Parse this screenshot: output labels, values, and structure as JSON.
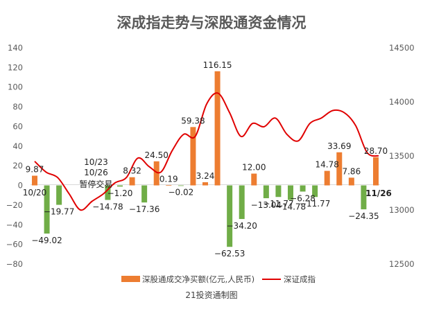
{
  "chart_data": {
    "type": "bar",
    "title": "深成指走势与深股通资金情况",
    "source": "21投资通制图",
    "colors": {
      "positive_bar": "#ED7D31",
      "negative_bar": "#70AD47",
      "line": "#E00000",
      "axis_text": "#595959"
    },
    "grid": false,
    "legend_position": "bottom",
    "left_axis": {
      "min": -80,
      "max": 140,
      "ticks": [
        "140",
        "120",
        "100",
        "80",
        "60",
        "40",
        "20",
        "0",
        "−20",
        "−40",
        "−60",
        "−80"
      ]
    },
    "right_axis": {
      "min": 12500,
      "max": 14500,
      "ticks": [
        "14500",
        "14000",
        "13500",
        "13000",
        "12500"
      ]
    },
    "series": [
      {
        "name": "深股通成交净买额(亿元,人民币)",
        "values": [
          9.87,
          -49.02,
          -19.77,
          null,
          null,
          null,
          -14.78,
          -1.2,
          8.32,
          -17.36,
          24.5,
          0.19,
          -0.02,
          59.38,
          3.24,
          116.15,
          -62.53,
          -34.2,
          12.0,
          -13.04,
          -11.77,
          -14.78,
          -6.28,
          -11.77,
          14.78,
          33.69,
          7.86,
          -24.35,
          28.7
        ],
        "labels": [
          "9.87",
          "−49.02",
          "−19.77",
          "",
          "",
          "",
          "−14.78",
          "−1.20",
          "8.32",
          "−17.36",
          "24.50",
          "0.19",
          "−0.02",
          "59.38",
          "3.24",
          "116.15",
          "−62.53",
          "−34.20",
          "12.00",
          "−13.04",
          "−11.77",
          "−14.78",
          "−6.28",
          "−11.77",
          "14.78",
          "33.69",
          "7.86",
          "−24.35",
          "28.70"
        ]
      },
      {
        "name": "深证成指",
        "axis": "right",
        "values": [
          13450,
          13350,
          13300,
          13150,
          13000,
          13080,
          13150,
          13250,
          13300,
          13480,
          13400,
          13350,
          13550,
          13700,
          13680,
          13980,
          14080,
          13900,
          13680,
          13800,
          13770,
          13850,
          13700,
          13640,
          13800,
          13850,
          13920,
          13900,
          13780,
          13530,
          13500
        ]
      }
    ],
    "annotations": [
      {
        "text": "10/20",
        "index": 0
      },
      {
        "text": "10/23",
        "index": 6
      },
      {
        "text": "10/26",
        "index": 6
      },
      {
        "text": "暂停交易",
        "index": 6
      },
      {
        "text": "11/26",
        "index": 28
      }
    ]
  }
}
